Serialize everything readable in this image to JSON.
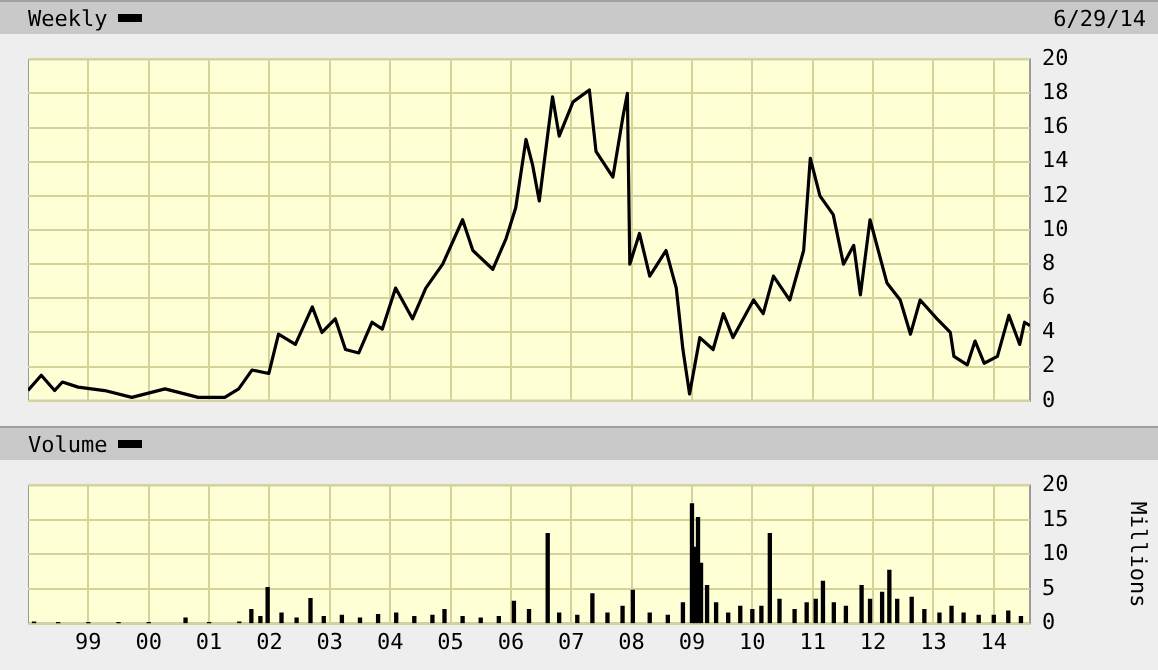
{
  "chart_data": [
    {
      "type": "line",
      "title": "Weekly",
      "annotations": [
        "6/29/14"
      ],
      "color": "#000000",
      "marker": "none",
      "grid": true,
      "tick_labels": "y",
      "x": [
        1998.0,
        1998.22,
        1998.44,
        1998.57,
        1998.83,
        1999.27,
        1999.72,
        2000.27,
        2000.82,
        2001.26,
        2001.49,
        2001.71,
        2001.99,
        2002.15,
        2002.43,
        2002.71,
        2002.87,
        2003.09,
        2003.26,
        2003.48,
        2003.7,
        2003.87,
        2004.09,
        2004.37,
        2004.59,
        2004.87,
        2005.2,
        2005.37,
        2005.7,
        2005.92,
        2006.08,
        2006.25,
        2006.36,
        2006.47,
        2006.69,
        2006.8,
        2007.03,
        2007.3,
        2007.41,
        2007.69,
        2007.86,
        2007.93,
        2007.97,
        2008.13,
        2008.3,
        2008.57,
        2008.74,
        2008.85,
        2008.96,
        2009.13,
        2009.35,
        2009.52,
        2009.68,
        2010.02,
        2010.18,
        2010.35,
        2010.62,
        2010.85,
        2010.96,
        2011.12,
        2011.34,
        2011.51,
        2011.68,
        2011.79,
        2011.95,
        2012.23,
        2012.45,
        2012.62,
        2012.78,
        2013.06,
        2013.28,
        2013.34,
        2013.56,
        2013.69,
        2013.84,
        2014.06,
        2014.25,
        2014.43,
        2014.51,
        2014.6
      ],
      "values": [
        0.6,
        1.5,
        0.6,
        1.1,
        0.8,
        0.6,
        0.2,
        0.7,
        0.2,
        0.2,
        0.7,
        1.8,
        1.6,
        3.9,
        3.3,
        5.5,
        4.0,
        4.8,
        3.0,
        2.8,
        4.6,
        4.2,
        6.6,
        4.8,
        6.6,
        8.0,
        10.6,
        8.8,
        7.7,
        9.5,
        11.3,
        15.3,
        13.8,
        11.7,
        17.8,
        15.5,
        17.5,
        18.2,
        14.6,
        13.1,
        16.7,
        18.0,
        8.0,
        9.8,
        7.3,
        8.8,
        6.6,
        3.0,
        0.4,
        3.7,
        3.0,
        5.1,
        3.7,
        5.9,
        5.1,
        7.3,
        5.9,
        8.8,
        14.2,
        12.0,
        10.9,
        8.0,
        9.1,
        6.2,
        10.6,
        6.9,
        5.9,
        3.9,
        5.9,
        4.8,
        4.0,
        2.6,
        2.1,
        3.5,
        2.2,
        2.6,
        5.0,
        3.3,
        4.6,
        4.4
      ],
      "xlim": [
        1998.0,
        2014.6
      ],
      "xticks": [
        {
          "value": 1999,
          "label": null
        },
        {
          "value": 2000,
          "label": null
        },
        {
          "value": 2001,
          "label": null
        },
        {
          "value": 2002,
          "label": null
        },
        {
          "value": 2003,
          "label": null
        },
        {
          "value": 2004,
          "label": null
        },
        {
          "value": 2005,
          "label": null
        },
        {
          "value": 2006,
          "label": null
        },
        {
          "value": 2007,
          "label": null
        },
        {
          "value": 2008,
          "label": null
        },
        {
          "value": 2009,
          "label": null
        },
        {
          "value": 2010,
          "label": null
        },
        {
          "value": 2011,
          "label": null
        },
        {
          "value": 2012,
          "label": null
        },
        {
          "value": 2013,
          "label": null
        },
        {
          "value": 2014,
          "label": null
        }
      ],
      "ylim": [
        0,
        20
      ],
      "yticks": [
        0,
        2,
        4,
        6,
        8,
        10,
        12,
        14,
        16,
        18,
        20
      ]
    },
    {
      "type": "bar",
      "title": "Volume",
      "ylabel": "Millions",
      "color": "#000000",
      "grid": true,
      "x": [
        1998.1,
        1998.5,
        1999.0,
        1999.5,
        2000.0,
        2000.61,
        2001.0,
        2001.5,
        2001.7,
        2001.85,
        2001.97,
        2002.2,
        2002.45,
        2002.68,
        2002.9,
        2003.2,
        2003.5,
        2003.8,
        2004.1,
        2004.4,
        2004.7,
        2004.9,
        2005.2,
        2005.5,
        2005.8,
        2006.05,
        2006.3,
        2006.61,
        2006.8,
        2007.1,
        2007.35,
        2007.6,
        2007.85,
        2008.02,
        2008.3,
        2008.6,
        2008.85,
        2009.0,
        2009.05,
        2009.1,
        2009.15,
        2009.25,
        2009.4,
        2009.6,
        2009.8,
        2010.0,
        2010.15,
        2010.29,
        2010.45,
        2010.7,
        2010.9,
        2011.05,
        2011.17,
        2011.35,
        2011.55,
        2011.81,
        2011.95,
        2012.15,
        2012.27,
        2012.4,
        2012.64,
        2012.85,
        2013.1,
        2013.3,
        2013.5,
        2013.75,
        2014.0,
        2014.24,
        2014.45
      ],
      "values": [
        0.2,
        0.1,
        0.1,
        0.1,
        0.1,
        0.8,
        0.1,
        0.2,
        2.0,
        1.0,
        5.2,
        1.5,
        0.8,
        3.6,
        1.0,
        1.2,
        0.8,
        1.3,
        1.5,
        1.0,
        1.2,
        2.0,
        1.0,
        0.8,
        1.0,
        3.2,
        2.0,
        13.0,
        1.5,
        1.2,
        4.3,
        1.5,
        2.5,
        4.8,
        1.5,
        1.2,
        3.0,
        17.3,
        11.0,
        15.3,
        8.7,
        5.5,
        3.0,
        1.5,
        2.5,
        2.0,
        2.5,
        13.0,
        3.5,
        2.0,
        3.0,
        3.5,
        6.1,
        3.0,
        2.5,
        5.5,
        3.5,
        4.5,
        7.7,
        3.5,
        3.8,
        2.0,
        1.5,
        2.5,
        1.5,
        1.2,
        1.2,
        1.8,
        1.0
      ],
      "xlim": [
        1998.0,
        2014.6
      ],
      "xticks": [
        {
          "value": 1999,
          "label": "99"
        },
        {
          "value": 2000,
          "label": "00"
        },
        {
          "value": 2001,
          "label": "01"
        },
        {
          "value": 2002,
          "label": "02"
        },
        {
          "value": 2003,
          "label": "03"
        },
        {
          "value": 2004,
          "label": "04"
        },
        {
          "value": 2005,
          "label": "05"
        },
        {
          "value": 2006,
          "label": "06"
        },
        {
          "value": 2007,
          "label": "07"
        },
        {
          "value": 2008,
          "label": "08"
        },
        {
          "value": 2009,
          "label": "09"
        },
        {
          "value": 2010,
          "label": "10"
        },
        {
          "value": 2011,
          "label": "11"
        },
        {
          "value": 2012,
          "label": "12"
        },
        {
          "value": 2013,
          "label": "13"
        },
        {
          "value": 2014,
          "label": "14"
        }
      ],
      "ylim": [
        0,
        20
      ],
      "yticks": [
        0,
        5,
        10,
        15,
        20
      ]
    }
  ]
}
